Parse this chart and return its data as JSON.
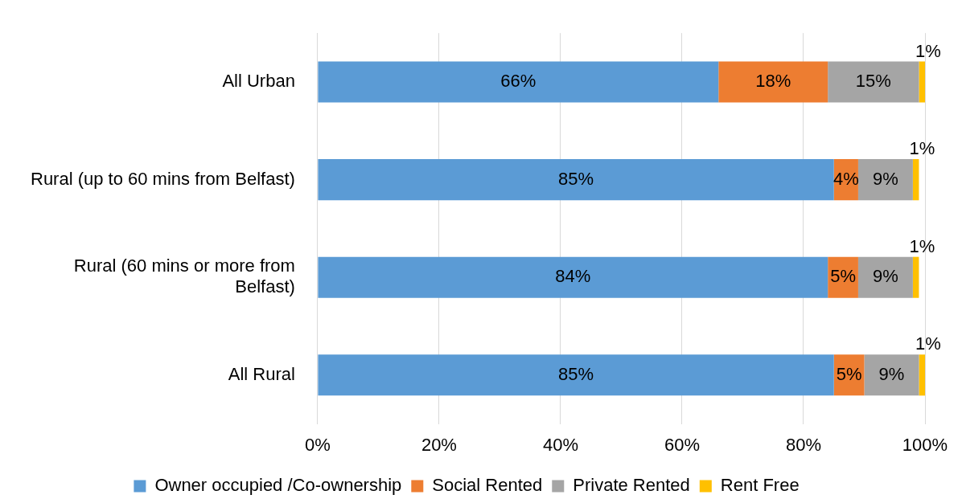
{
  "chart_data": {
    "type": "bar",
    "orientation": "horizontal",
    "stacked": true,
    "categories": [
      "All Urban",
      "Rural (up to 60 mins from Belfast)",
      "Rural (60 mins or more from Belfast)",
      "All Rural"
    ],
    "series": [
      {
        "name": "Owner occupied /Co-ownership",
        "color": "#5b9bd5",
        "values": [
          66,
          85,
          84,
          85
        ],
        "value_labels": [
          "66%",
          "85%",
          "84%",
          "85%"
        ]
      },
      {
        "name": "Social Rented",
        "color": "#ed7d31",
        "values": [
          18,
          4,
          5,
          5
        ],
        "value_labels": [
          "18%",
          "4%",
          "5%",
          "5%"
        ]
      },
      {
        "name": "Private Rented",
        "color": "#a5a5a5",
        "values": [
          15,
          9,
          9,
          9
        ],
        "value_labels": [
          "15%",
          "9%",
          "9%",
          "9%"
        ]
      },
      {
        "name": "Rent Free",
        "color": "#ffc000",
        "values": [
          1,
          1,
          1,
          1
        ],
        "value_labels": [
          "1%",
          "1%",
          "1%",
          "1%"
        ]
      }
    ],
    "xlim": [
      0,
      100
    ],
    "xticks": [
      {
        "value": 0,
        "label": "0%"
      },
      {
        "value": 20,
        "label": "20%"
      },
      {
        "value": 40,
        "label": "40%"
      },
      {
        "value": 60,
        "label": "60%"
      },
      {
        "value": 80,
        "label": "80%"
      },
      {
        "value": 100,
        "label": "100%"
      }
    ],
    "grid": "x",
    "legend": "bottom"
  }
}
